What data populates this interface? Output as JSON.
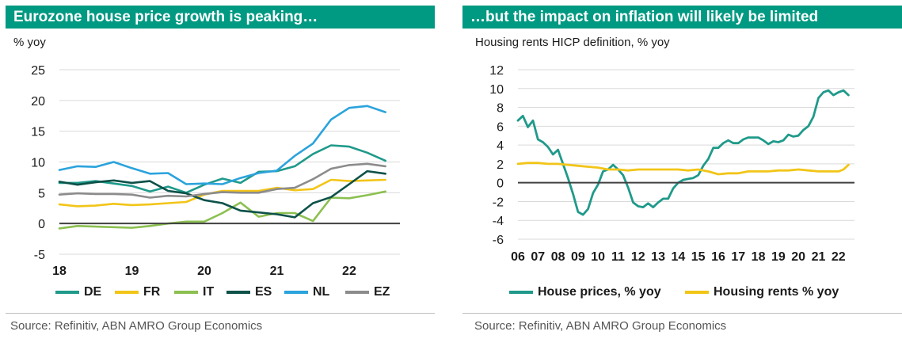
{
  "left": {
    "title": "Eurozone house price growth is peaking…",
    "unit": "% yoy",
    "source": "Source: Refinitiv, ABN AMRO Group Economics"
  },
  "right": {
    "title": "…but the impact on inflation will likely be limited",
    "unit": "Housing rents HICP definition, % yoy",
    "source": "Source: Refinitiv, ABN AMRO Group Economics"
  },
  "chart_data": [
    {
      "type": "line",
      "title": "Eurozone house price growth is peaking…",
      "ylabel": "% yoy",
      "xlabel": "",
      "ylim": [
        -5,
        25
      ],
      "yticks": [
        -5,
        0,
        5,
        10,
        15,
        20,
        25
      ],
      "xlim": [
        2018,
        2022.7
      ],
      "xticks": [
        2018,
        2019,
        2020,
        2021,
        2022
      ],
      "xtick_labels": [
        "18",
        "19",
        "20",
        "21",
        "22"
      ],
      "grid": "horizontal",
      "legend_position": "bottom",
      "x": [
        2018.0,
        2018.25,
        2018.5,
        2018.75,
        2019.0,
        2019.25,
        2019.5,
        2019.75,
        2020.0,
        2020.25,
        2020.5,
        2020.75,
        2021.0,
        2021.25,
        2021.5,
        2021.75,
        2022.0,
        2022.25,
        2022.5
      ],
      "series": [
        {
          "name": "DE",
          "color": "#1f9a8a",
          "values": [
            6.6,
            6.6,
            6.9,
            6.5,
            6.1,
            5.2,
            6.0,
            5.0,
            6.3,
            7.3,
            6.6,
            8.4,
            8.5,
            9.3,
            11.3,
            12.7,
            12.5,
            11.5,
            10.2
          ]
        },
        {
          "name": "FR",
          "color": "#f2c518",
          "values": [
            3.1,
            2.8,
            2.9,
            3.2,
            3.0,
            3.1,
            3.3,
            3.5,
            4.7,
            5.3,
            5.3,
            5.3,
            5.8,
            5.4,
            5.6,
            7.1,
            6.9,
            7.0,
            7.1
          ]
        },
        {
          "name": "IT",
          "color": "#8cc051",
          "values": [
            -0.8,
            -0.4,
            -0.5,
            -0.6,
            -0.7,
            -0.4,
            0.0,
            0.3,
            0.3,
            1.7,
            3.4,
            1.1,
            1.7,
            1.7,
            0.4,
            4.2,
            4.1,
            4.6,
            5.2
          ]
        },
        {
          "name": "ES",
          "color": "#0d5149",
          "values": [
            6.8,
            6.3,
            6.7,
            7.0,
            6.6,
            6.9,
            5.3,
            4.9,
            3.8,
            3.3,
            2.1,
            1.8,
            1.5,
            1.0,
            3.3,
            4.3,
            6.4,
            8.5,
            8.1
          ]
        },
        {
          "name": "NL",
          "color": "#2ba3dc",
          "values": [
            8.7,
            9.3,
            9.2,
            10.0,
            9.0,
            8.1,
            8.2,
            6.4,
            6.5,
            6.4,
            7.4,
            8.2,
            8.6,
            11.0,
            13.0,
            16.9,
            18.8,
            19.1,
            18.1
          ]
        },
        {
          "name": "EZ",
          "color": "#8c8c8c",
          "values": [
            4.7,
            4.9,
            4.8,
            4.8,
            4.7,
            4.2,
            4.5,
            4.4,
            4.8,
            5.1,
            5.0,
            5.0,
            5.6,
            5.8,
            7.2,
            8.9,
            9.5,
            9.7,
            9.3
          ]
        }
      ]
    },
    {
      "type": "line",
      "title": "…but the impact on inflation will likely be limited",
      "ylabel": "Housing rents HICP definition, % yoy",
      "xlabel": "",
      "ylim": [
        -6,
        12
      ],
      "yticks": [
        -6,
        -4,
        -2,
        0,
        2,
        4,
        6,
        8,
        10,
        12
      ],
      "xlim": [
        2006,
        2022.8
      ],
      "xticks": [
        2006,
        2007,
        2008,
        2009,
        2010,
        2011,
        2012,
        2013,
        2014,
        2015,
        2016,
        2017,
        2018,
        2019,
        2020,
        2021,
        2022
      ],
      "xtick_labels": [
        "06",
        "07",
        "08",
        "09",
        "10",
        "11",
        "12",
        "13",
        "14",
        "15",
        "16",
        "17",
        "18",
        "19",
        "20",
        "21",
        "22"
      ],
      "grid": "horizontal",
      "legend_position": "bottom",
      "series": [
        {
          "name": "House prices, % yoy",
          "color": "#1f9a8a",
          "x": [
            2006.0,
            2006.25,
            2006.5,
            2006.75,
            2007.0,
            2007.25,
            2007.5,
            2007.75,
            2008.0,
            2008.25,
            2008.5,
            2008.75,
            2009.0,
            2009.25,
            2009.5,
            2009.75,
            2010.0,
            2010.25,
            2010.5,
            2010.75,
            2011.0,
            2011.25,
            2011.5,
            2011.75,
            2012.0,
            2012.25,
            2012.5,
            2012.75,
            2013.0,
            2013.25,
            2013.5,
            2013.75,
            2014.0,
            2014.25,
            2014.5,
            2014.75,
            2015.0,
            2015.25,
            2015.5,
            2015.75,
            2016.0,
            2016.25,
            2016.5,
            2016.75,
            2017.0,
            2017.25,
            2017.5,
            2017.75,
            2018.0,
            2018.25,
            2018.5,
            2018.75,
            2019.0,
            2019.25,
            2019.5,
            2019.75,
            2020.0,
            2020.25,
            2020.5,
            2020.75,
            2021.0,
            2021.25,
            2021.5,
            2021.75,
            2022.0,
            2022.25,
            2022.5
          ],
          "values": [
            6.6,
            7.1,
            5.9,
            6.6,
            4.6,
            4.3,
            3.8,
            3.0,
            3.5,
            2.0,
            0.5,
            -1.2,
            -3.1,
            -3.4,
            -2.8,
            -1.1,
            -0.2,
            1.2,
            1.4,
            1.9,
            1.4,
            0.8,
            -0.5,
            -2.1,
            -2.5,
            -2.6,
            -2.2,
            -2.6,
            -2.1,
            -1.7,
            -1.7,
            -0.6,
            0.0,
            0.3,
            0.4,
            0.5,
            0.8,
            1.8,
            2.5,
            3.7,
            3.7,
            4.2,
            4.5,
            4.2,
            4.2,
            4.6,
            4.8,
            4.8,
            4.8,
            4.5,
            4.1,
            4.4,
            4.3,
            4.5,
            5.1,
            4.9,
            5.0,
            5.6,
            6.0,
            7.0,
            9.0,
            9.6,
            9.8,
            9.3,
            9.6,
            9.8,
            9.3
          ]
        },
        {
          "name": "Housing rents % yoy",
          "color": "#f2c518",
          "x": [
            2006.0,
            2006.5,
            2007.0,
            2007.5,
            2008.0,
            2008.5,
            2009.0,
            2009.5,
            2010.0,
            2010.5,
            2011.0,
            2011.5,
            2012.0,
            2012.5,
            2013.0,
            2013.5,
            2014.0,
            2014.5,
            2015.0,
            2015.5,
            2016.0,
            2016.5,
            2017.0,
            2017.5,
            2018.0,
            2018.5,
            2019.0,
            2019.5,
            2020.0,
            2020.5,
            2021.0,
            2021.5,
            2022.0,
            2022.25,
            2022.5
          ],
          "values": [
            2.0,
            2.1,
            2.1,
            2.0,
            2.0,
            1.9,
            1.8,
            1.7,
            1.6,
            1.4,
            1.4,
            1.3,
            1.4,
            1.4,
            1.4,
            1.4,
            1.4,
            1.3,
            1.4,
            1.2,
            0.9,
            1.0,
            1.0,
            1.2,
            1.2,
            1.2,
            1.3,
            1.3,
            1.4,
            1.3,
            1.2,
            1.2,
            1.2,
            1.4,
            1.9
          ]
        }
      ]
    }
  ]
}
